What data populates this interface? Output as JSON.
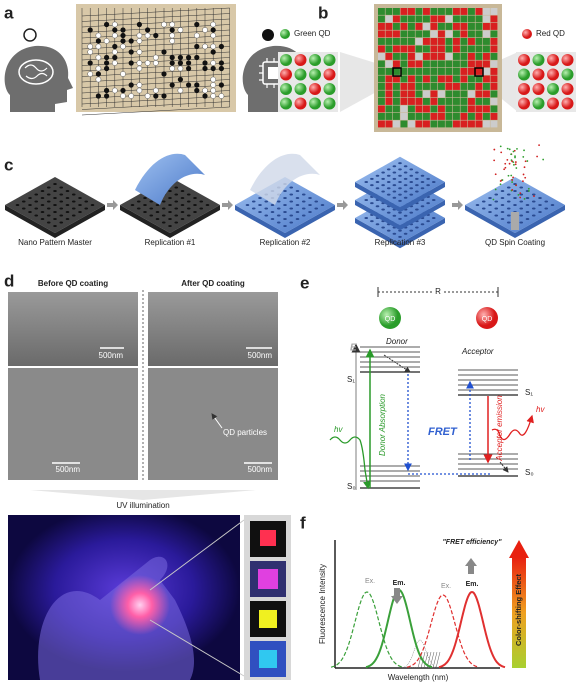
{
  "panel_labels": [
    "a",
    "b",
    "c",
    "d",
    "e",
    "f"
  ],
  "b": {
    "left_label": "Green QD",
    "right_label": "Red QD"
  },
  "c": {
    "steps": [
      "Nano Pattern Master",
      "Replication #1",
      "Replication #2",
      "Replication #3",
      "QD Spin Coating"
    ]
  },
  "d": {
    "before": "Before QD coating",
    "after": "After QD coating",
    "scale_bars": [
      "500nm",
      "500nm",
      "500nm",
      "500nm"
    ],
    "annotation": "QD particles",
    "uv": "UV illumination"
  },
  "e": {
    "distance": "R",
    "donor_qd": "QD",
    "acceptor_qd": "QD",
    "energy_axis": "E",
    "donor": "Donor",
    "acceptor": "Acceptor",
    "levels": [
      "S₁",
      "S₀",
      "S₁",
      "S₀"
    ],
    "donor_absorption": "Donor Absorption",
    "acceptor_emission": "Acceptor emission",
    "fret": "FRET",
    "photon_in": "hv",
    "photon_out": "hv"
  },
  "f": {
    "efficiency": "\"FRET efficiency\"",
    "peaks": [
      "Ex.",
      "Em.",
      "Ex.",
      "Em."
    ],
    "y_label": "Fluorescence Intensity",
    "x_label": "Wavelength (nm)",
    "bar_label": "Color-shifting Effect"
  }
}
